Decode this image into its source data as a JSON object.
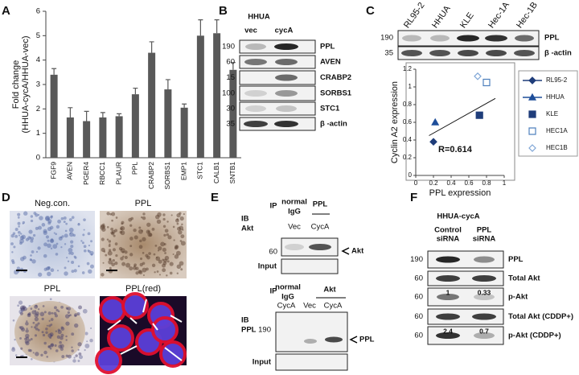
{
  "chart_data": [
    {
      "type": "bar",
      "ylabel": [
        "Fold change",
        "(HHUA-cycA/HHUA-vec)"
      ],
      "categories": [
        "FGF9",
        "AVEN",
        "PGER4",
        "RBCC1",
        "PLAUR",
        "PPL",
        "CRABP2",
        "SORBS1",
        "EMP1",
        "STC1",
        "CALB1",
        "SNTB1"
      ],
      "values": [
        3.4,
        1.65,
        1.5,
        1.65,
        1.7,
        2.6,
        4.3,
        2.8,
        2.05,
        5.0,
        5.1,
        3.6
      ],
      "errors": [
        0.25,
        0.4,
        0.4,
        0.2,
        0.1,
        0.25,
        0.45,
        0.4,
        0.15,
        0.65,
        0.55,
        0.3
      ],
      "color": "#595959",
      "ylim": [
        0,
        6
      ],
      "yticks": [
        0,
        1,
        2,
        3,
        4,
        5,
        6
      ]
    },
    {
      "type": "scatter",
      "xlabel": "PPL expression",
      "ylabel": "Cyclin A2 expression",
      "series": [
        {
          "name": "RL95-2",
          "color": "#1f3d7a",
          "marker": "diamond",
          "filled": true,
          "line": true,
          "x": [
            0.2
          ],
          "y": [
            0.38
          ]
        },
        {
          "name": "HHUA",
          "color": "#1f4e9a",
          "marker": "triangle",
          "filled": true,
          "line": true,
          "x": [
            0.22
          ],
          "y": [
            0.6
          ]
        },
        {
          "name": "KLE",
          "color": "#1f3d7a",
          "marker": "square",
          "filled": true,
          "line": false,
          "x": [
            0.72
          ],
          "y": [
            0.68
          ]
        },
        {
          "name": "HEC1A",
          "color": "#4f81bd",
          "marker": "square",
          "filled": false,
          "line": false,
          "x": [
            0.8
          ],
          "y": [
            1.05
          ]
        },
        {
          "name": "HEC1B",
          "color": "#7fa6d6",
          "marker": "diamond",
          "filled": false,
          "line": false,
          "x": [
            0.7
          ],
          "y": [
            1.12
          ]
        }
      ],
      "trendline": {
        "x": [
          0.15,
          0.9
        ],
        "y": [
          0.45,
          0.87
        ]
      },
      "annotation": "R=0.614",
      "xlim": [
        0,
        1
      ],
      "xticks": [
        0,
        0.2,
        0.4,
        0.6,
        0.8,
        1
      ],
      "ylim": [
        0,
        1.2
      ],
      "yticks": [
        0,
        0.2,
        0.4,
        0.6,
        0.8,
        1,
        1.2
      ]
    }
  ],
  "panel_labels": [
    "A",
    "B",
    "C",
    "D",
    "E",
    "F"
  ],
  "panel_b": {
    "header": "HHUA",
    "lanes": [
      "vec",
      "cycA"
    ],
    "mw": [
      "190",
      "60",
      "15",
      "100",
      "30",
      "35"
    ],
    "proteins": [
      "PPL",
      "AVEN",
      "CRABP2",
      "SORBS1",
      "STC1",
      "β -actin"
    ]
  },
  "panel_c_blot": {
    "lanes": [
      "RL95-2",
      "HHUA",
      "KLE",
      "Hec-1A",
      "Hec-1B"
    ],
    "mw": [
      "190",
      "35"
    ],
    "proteins": [
      "PPL",
      "β -actin"
    ]
  },
  "panel_d": {
    "titles": [
      "Neg.con.",
      "PPL",
      "PPL",
      "PPL(red)"
    ]
  },
  "panel_e": {
    "top": {
      "ip": "IP",
      "groups": [
        [
          "normal",
          "IgG"
        ],
        [
          "PPL"
        ]
      ],
      "lanes": [
        "Vec",
        "CycA"
      ],
      "ib": [
        "IB",
        "Akt"
      ],
      "mw": "60",
      "band": "Akt",
      "input": "Input"
    },
    "bottom": {
      "ip": "IP",
      "groups": [
        [
          "normal",
          "IgG"
        ],
        [
          "Akt"
        ]
      ],
      "lanes": [
        "CycA",
        "Vec",
        "CycA"
      ],
      "ib": [
        "IB",
        "PPL"
      ],
      "mw": "190",
      "band": "PPL",
      "input": "Input"
    }
  },
  "panel_f": {
    "header": "HHUA-cycA",
    "lanes": [
      [
        "Control",
        "siRNA"
      ],
      [
        "PPL",
        "siRNA"
      ]
    ],
    "rows": [
      {
        "mw": "190",
        "label": "PPL"
      },
      {
        "mw": "60",
        "label": "Total Akt"
      },
      {
        "mw": "60",
        "label": "p-Akt",
        "quant": [
          "1",
          "0.33"
        ]
      },
      {
        "mw": "60",
        "label": "Total Akt (CDDP+)"
      },
      {
        "mw": "60",
        "label": "p-Akt (CDDP+)",
        "quant": [
          "2.4",
          "0.7"
        ]
      }
    ]
  }
}
